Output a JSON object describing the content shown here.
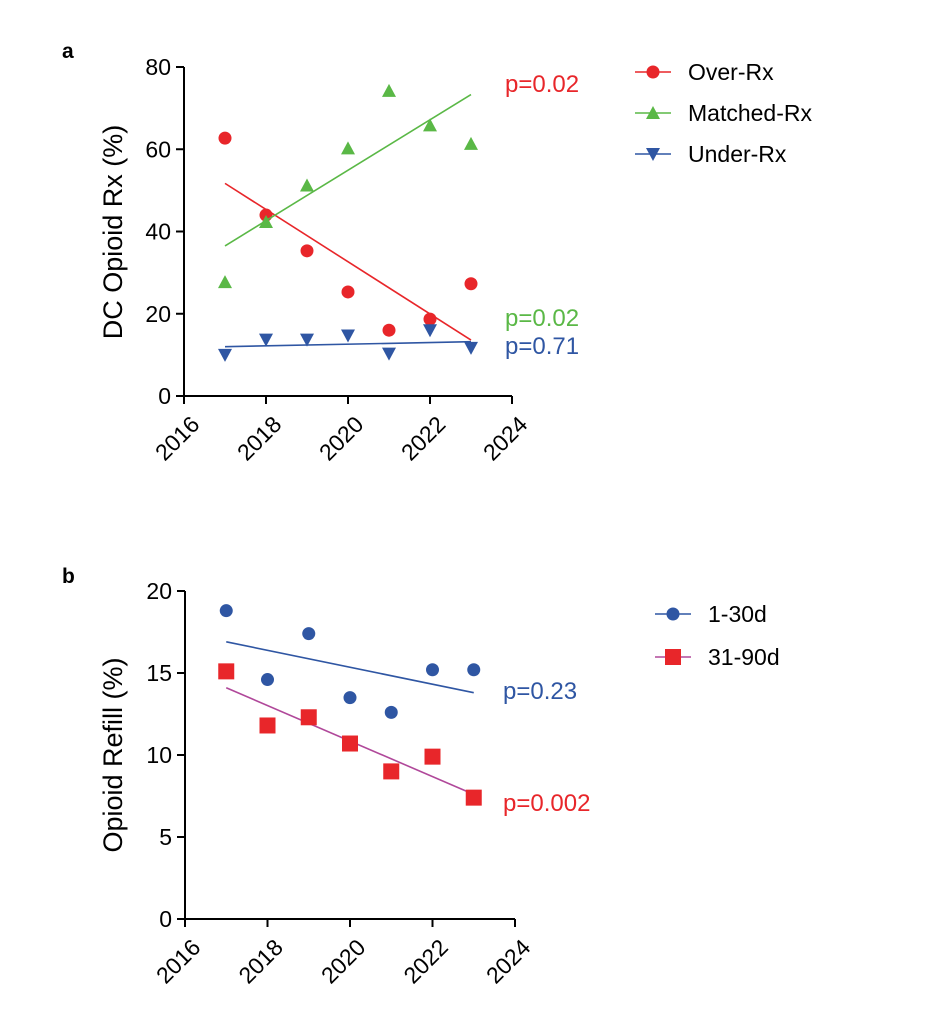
{
  "chart_data": [
    {
      "panel": "a",
      "type": "scatter",
      "ylabel": "DC Opioid Rx (%)",
      "xlim": [
        2016,
        2024
      ],
      "ylim": [
        0,
        80
      ],
      "xticks": [
        "2016",
        "2018",
        "2020",
        "2022",
        "2024"
      ],
      "yticks": [
        "0",
        "20",
        "40",
        "60",
        "80"
      ],
      "legend_position": "right",
      "x": [
        2017,
        2018,
        2019,
        2020,
        2021,
        2022,
        2023
      ],
      "series": [
        {
          "name": "Over-Rx",
          "color": "#e8262a",
          "marker": "circle",
          "values": [
            62.7,
            44.0,
            35.3,
            25.3,
            16.0,
            18.7,
            27.3
          ],
          "trend": {
            "start": [
              2017,
              51.7
            ],
            "end": [
              2023,
              13.6
            ]
          },
          "pvalue": "p=0.02"
        },
        {
          "name": "Matched-Rx",
          "color": "#5ab846",
          "marker": "triangle-up",
          "values": [
            27.7,
            42.3,
            51.2,
            60.2,
            74.2,
            65.8,
            61.3
          ],
          "trend": {
            "start": [
              2017,
              36.5
            ],
            "end": [
              2023,
              73.3
            ]
          },
          "pvalue": "p=0.02"
        },
        {
          "name": "Under-Rx",
          "color": "#2f56a3",
          "marker": "triangle-down",
          "values": [
            10.0,
            13.7,
            13.7,
            14.7,
            10.3,
            16.0,
            11.7
          ],
          "trend": {
            "start": [
              2017,
              12.0
            ],
            "end": [
              2023,
              13.2
            ]
          },
          "pvalue": "p=0.71"
        }
      ]
    },
    {
      "panel": "b",
      "type": "scatter",
      "ylabel": "Opioid Refill (%)",
      "xlim": [
        2016,
        2024
      ],
      "ylim": [
        0,
        20
      ],
      "xticks": [
        "2016",
        "2018",
        "2020",
        "2022",
        "2024"
      ],
      "yticks": [
        "0",
        "5",
        "10",
        "15",
        "20"
      ],
      "legend_position": "right",
      "x": [
        2017,
        2018,
        2019,
        2020,
        2021,
        2022,
        2023
      ],
      "series": [
        {
          "name": "1-30d",
          "color": "#2f56a3",
          "marker": "circle",
          "values": [
            18.8,
            14.6,
            17.4,
            13.5,
            12.6,
            15.2,
            15.2
          ],
          "trend": {
            "start": [
              2017,
              16.9
            ],
            "end": [
              2023,
              13.8
            ],
            "color": "#2f56a3"
          },
          "pvalue": "p=0.23"
        },
        {
          "name": "31-90d",
          "color": "#e8262a",
          "marker": "square",
          "values": [
            15.1,
            11.8,
            12.3,
            10.7,
            9.0,
            9.9,
            7.4
          ],
          "trend": {
            "start": [
              2017,
              14.1
            ],
            "end": [
              2023,
              7.6
            ],
            "color": "#b0489a"
          },
          "pvalue": "p=0.002"
        }
      ]
    }
  ]
}
